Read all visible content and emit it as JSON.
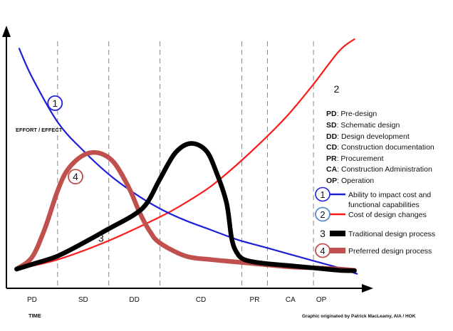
{
  "chart_data": {
    "type": "line",
    "title": "",
    "ylabel": "EFFORT / EFFECT",
    "xlabel": "TIME",
    "x_units": "project phase",
    "y_units": "relative",
    "xlim": [
      0,
      7
    ],
    "ylim": [
      0,
      100
    ],
    "phases": [
      "PD",
      "SD",
      "DD",
      "CD",
      "PR",
      "CA",
      "OP"
    ],
    "phase_boundaries": [
      1,
      2,
      3,
      4.6,
      5.1,
      6
    ],
    "series": [
      {
        "id": "1",
        "name": "Ability to impact cost and functional capabilities",
        "color": "#1f1fd8",
        "x": [
          0.25,
          0.5,
          1.0,
          1.5,
          2.0,
          2.5,
          3.0,
          3.5,
          4.0,
          4.5,
          5.0,
          5.5,
          6.0,
          6.5,
          6.85
        ],
        "y": [
          96,
          84,
          65,
          53,
          43,
          35,
          28.5,
          23.5,
          19.5,
          15.5,
          12.5,
          9.5,
          6.5,
          3.5,
          1
        ]
      },
      {
        "id": "2",
        "name": "Cost of design changes",
        "color": "#ff1a1a",
        "x": [
          0.2,
          1.0,
          2.0,
          3.0,
          3.5,
          4.0,
          4.5,
          5.0,
          5.5,
          6.0,
          6.5,
          6.8
        ],
        "y": [
          3,
          7,
          15,
          25,
          31,
          38,
          47,
          57,
          68,
          81,
          95,
          100
        ]
      },
      {
        "id": "3",
        "name": "Traditional design process",
        "color": "#000000",
        "x": [
          0.2,
          0.5,
          1.0,
          1.5,
          2.0,
          2.5,
          2.75,
          3.0,
          3.3,
          3.6,
          3.9,
          4.1,
          4.3,
          4.4,
          4.5,
          4.65,
          5.0,
          5.5,
          6.0,
          6.5,
          6.8
        ],
        "y": [
          3,
          5,
          8.5,
          14,
          20,
          26,
          31,
          41,
          52,
          56,
          53,
          44,
          31,
          16,
          10,
          7,
          5.5,
          4.5,
          3.5,
          2.5,
          2.3
        ]
      },
      {
        "id": "4",
        "name": "Preferred design process",
        "color": "#c0504d",
        "x": [
          0.2,
          0.5,
          0.75,
          1.0,
          1.2,
          1.5,
          1.8,
          2.1,
          2.4,
          2.6,
          2.8,
          3.0,
          3.5,
          4.0,
          4.5,
          5.0,
          5.5,
          6.0,
          6.5,
          6.8
        ],
        "y": [
          3,
          8,
          20,
          36,
          45,
          51,
          52,
          48,
          37,
          27,
          19,
          14,
          8.5,
          7,
          6,
          5,
          4,
          3.5,
          3,
          2.5
        ]
      }
    ],
    "curve_labels": [
      {
        "id": "1",
        "x": 0.95,
        "y": 73
      },
      {
        "id": "2",
        "x": 6.45,
        "y": 79
      },
      {
        "id": "3",
        "x": 1.85,
        "y": 16
      },
      {
        "id": "4",
        "x": 1.35,
        "y": 42
      }
    ],
    "legend_placement": "right",
    "grid": false
  },
  "abbreviations": [
    {
      "code": "PD",
      "text": ": Pre-design"
    },
    {
      "code": "SD",
      "text": ": Schematic design"
    },
    {
      "code": "DD",
      "text": ": Design development"
    },
    {
      "code": "CD",
      "text": ": Construction documentation"
    },
    {
      "code": "PR",
      "text": ": Procurement"
    },
    {
      "code": "CA",
      "text": ": Construction Administration"
    },
    {
      "code": "OP",
      "text": ": Operation"
    }
  ],
  "legend": [
    {
      "num": "1",
      "line1": "Ability to impact cost and",
      "line2": "functional capabilities"
    },
    {
      "num": "2",
      "line1": "Cost of design changes",
      "line2": ""
    },
    {
      "num": "3",
      "line1": "Traditional design process",
      "line2": ""
    },
    {
      "num": "4",
      "line1": "Preferred design process",
      "line2": ""
    }
  ],
  "credit": "Graphic originated by Patrick MacLeamy, AIA / HOK"
}
